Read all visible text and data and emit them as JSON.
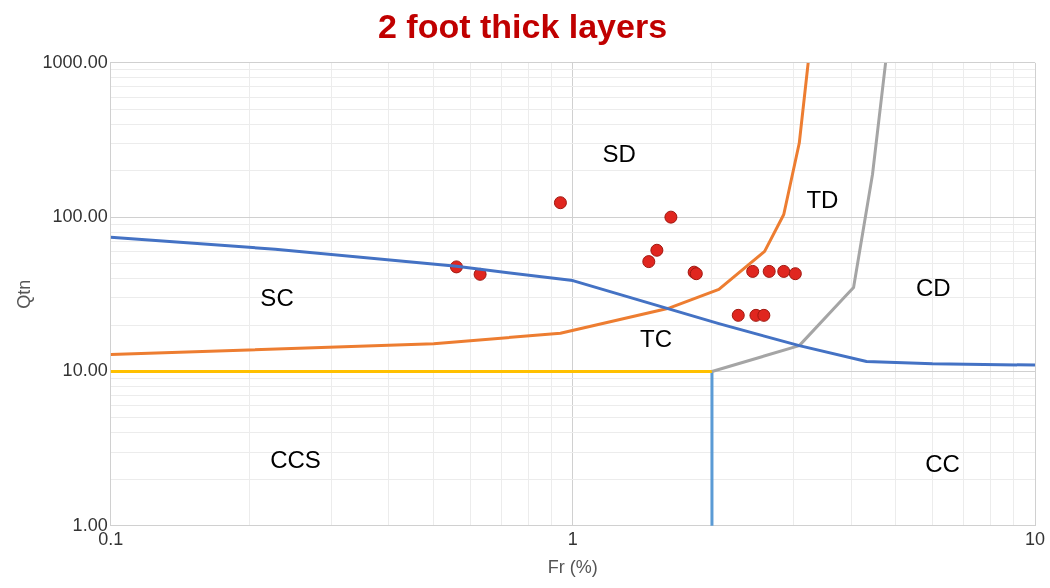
{
  "chart_data": {
    "type": "scatter",
    "title": "2 foot thick layers",
    "xlabel": "Fr (%)",
    "ylabel": "Qtn",
    "log": "xy",
    "grid": true,
    "legend": false,
    "xlim": [
      0.1,
      10
    ],
    "ylim": [
      1,
      1000
    ],
    "xticks": [
      0.1,
      {
        "value": 0.2,
        "label": null
      },
      {
        "value": 0.3,
        "label": null
      },
      {
        "value": 0.4,
        "label": null
      },
      {
        "value": 0.5,
        "label": null
      },
      {
        "value": 0.6,
        "label": null
      },
      {
        "value": 0.7,
        "label": null
      },
      {
        "value": 0.8,
        "label": null
      },
      {
        "value": 0.9,
        "label": null
      },
      1,
      {
        "value": 2,
        "label": null
      },
      {
        "value": 3,
        "label": null
      },
      {
        "value": 4,
        "label": null
      },
      {
        "value": 5,
        "label": null
      },
      {
        "value": 6,
        "label": null
      },
      {
        "value": 7,
        "label": null
      },
      {
        "value": 8,
        "label": null
      },
      {
        "value": 9,
        "label": null
      },
      10
    ],
    "yticks": [
      {
        "value": 1,
        "label": "1.00"
      },
      {
        "value": 2,
        "label": null
      },
      {
        "value": 3,
        "label": null
      },
      {
        "value": 4,
        "label": null
      },
      {
        "value": 5,
        "label": null
      },
      {
        "value": 6,
        "label": null
      },
      {
        "value": 7,
        "label": null
      },
      {
        "value": 8,
        "label": null
      },
      {
        "value": 9,
        "label": null
      },
      {
        "value": 10,
        "label": "10.00"
      },
      {
        "value": 20,
        "label": null
      },
      {
        "value": 30,
        "label": null
      },
      {
        "value": 40,
        "label": null
      },
      {
        "value": 50,
        "label": null
      },
      {
        "value": 60,
        "label": null
      },
      {
        "value": 70,
        "label": null
      },
      {
        "value": 80,
        "label": null
      },
      {
        "value": 90,
        "label": null
      },
      {
        "value": 100,
        "label": "100.00"
      },
      {
        "value": 200,
        "label": null
      },
      {
        "value": 300,
        "label": null
      },
      {
        "value": 400,
        "label": null
      },
      {
        "value": 500,
        "label": null
      },
      {
        "value": 600,
        "label": null
      },
      {
        "value": 700,
        "label": null
      },
      {
        "value": 800,
        "label": null
      },
      {
        "value": 900,
        "label": null
      },
      {
        "value": 1000,
        "label": "1000.00"
      }
    ],
    "series": [
      {
        "type": "line",
        "marker": "none",
        "color": "#4472c4",
        "x": [
          0.1,
          0.227,
          0.56,
          1,
          2.07,
          3.09,
          4.32,
          6,
          10
        ],
        "values": [
          74,
          62,
          48,
          38.8,
          20.4,
          14.7,
          11.6,
          11.2,
          11
        ]
      },
      {
        "type": "line",
        "marker": "none",
        "color": "#ed7d31",
        "x": [
          0.1,
          0.5,
          0.94,
          1.62,
          2.07,
          2.6,
          2.86,
          3.09,
          3.23
        ],
        "values": [
          12.9,
          15.1,
          17.7,
          25.8,
          34,
          60,
          104,
          302,
          1000
        ]
      },
      {
        "type": "line",
        "marker": "none",
        "color": "#a5a5a5",
        "x": [
          2,
          3.09,
          3.86,
          4.05,
          4.45,
          4.75
        ],
        "values": [
          10,
          14.7,
          30,
          35,
          189,
          1000
        ]
      },
      {
        "type": "line",
        "marker": "none",
        "color": "#ffc000",
        "x": [
          0.1,
          2
        ],
        "values": [
          10,
          10
        ]
      },
      {
        "type": "line",
        "marker": "none",
        "color": "#5b9bd5",
        "x": [
          2,
          2
        ],
        "values": [
          10,
          1
        ]
      },
      {
        "type": "scatter",
        "marker": "circle",
        "color": "#e0261f",
        "x": [
          0.56,
          0.63,
          0.94,
          1.63,
          1.52,
          1.46,
          1.83,
          1.85,
          2.45,
          2.66,
          2.86,
          3.03,
          2.28,
          2.49,
          2.59
        ],
        "values": [
          47.6,
          42.6,
          124,
          100,
          61,
          51.5,
          44,
          43,
          44.5,
          44.5,
          44.5,
          43,
          23.1,
          23.1,
          23.1
        ]
      }
    ],
    "annotations": [
      "SD",
      "TD",
      "SC",
      "CD",
      "TC",
      "CCS",
      "CC"
    ]
  }
}
